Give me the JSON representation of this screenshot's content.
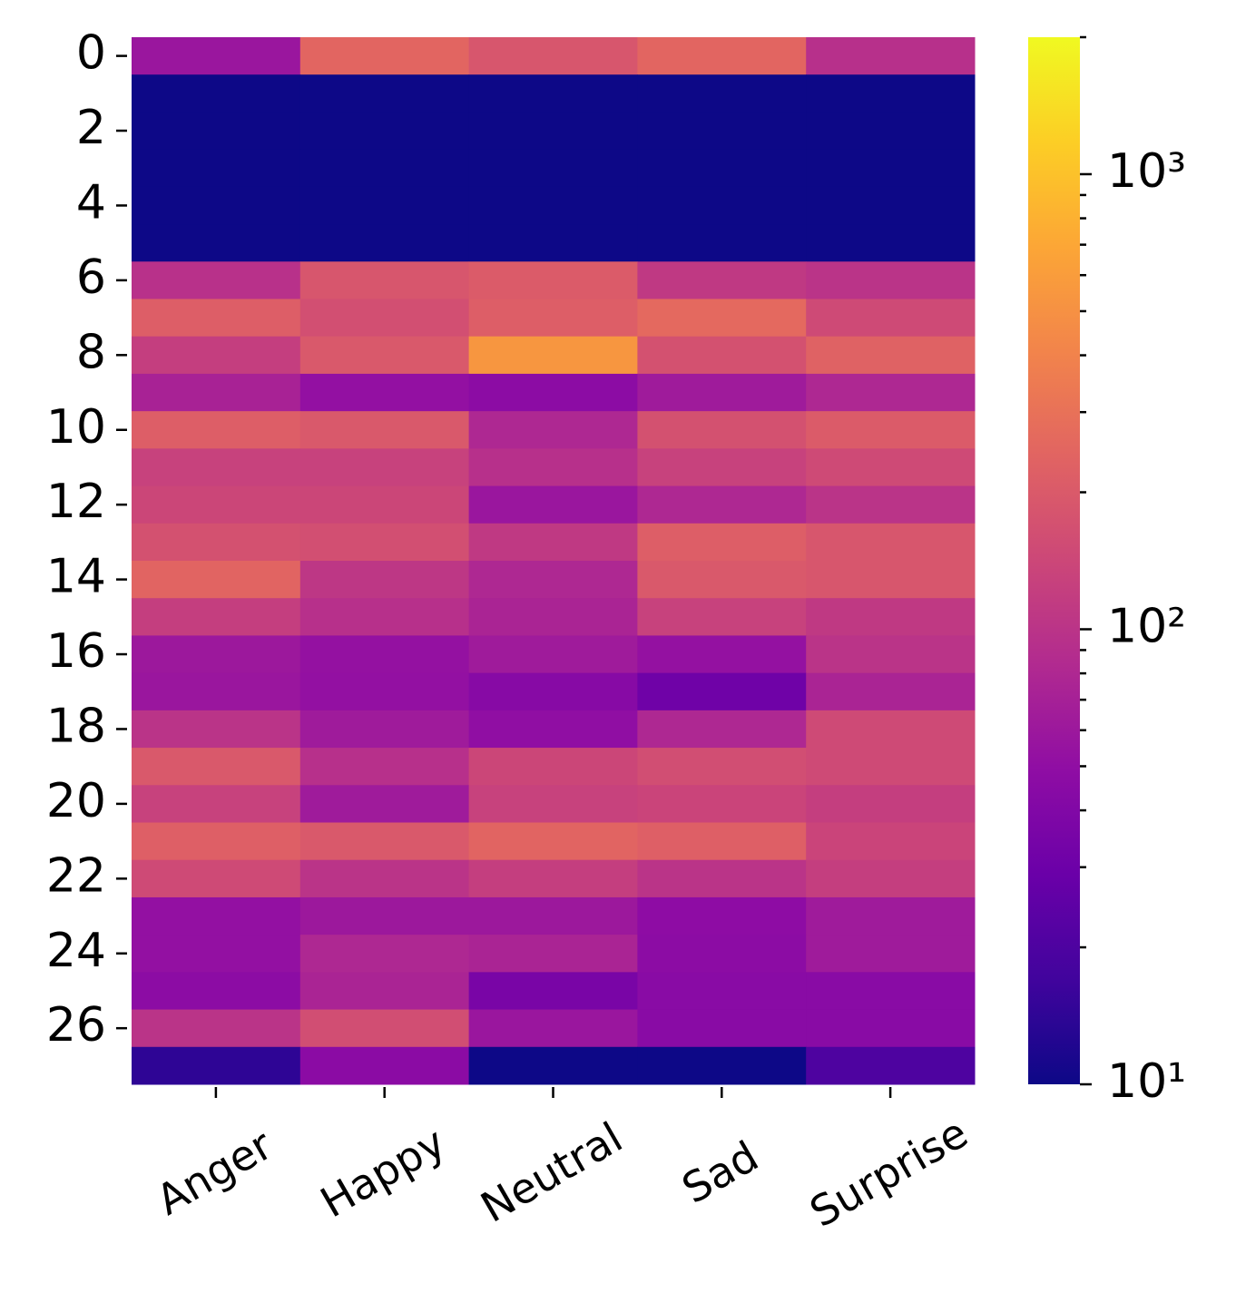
{
  "chart_data": {
    "type": "heatmap",
    "colormap": "plasma",
    "log_scale": true,
    "x_categories": [
      "Anger",
      "Happy",
      "Neutral",
      "Sad",
      "Surprise"
    ],
    "y_categories": [
      0,
      null,
      2,
      null,
      4,
      null,
      6,
      null,
      8,
      null,
      10,
      null,
      12,
      null,
      14,
      null,
      16,
      null,
      18,
      null,
      20,
      null,
      22,
      null,
      24,
      null,
      26,
      null
    ],
    "values": [
      [
        58,
        245,
        185,
        245,
        93
      ],
      [
        10,
        10,
        10,
        10,
        10
      ],
      [
        10,
        10,
        10,
        10,
        10
      ],
      [
        10,
        10,
        10,
        10,
        10
      ],
      [
        10,
        10,
        10,
        10,
        10
      ],
      [
        10,
        10,
        10,
        10,
        10
      ],
      [
        95,
        185,
        205,
        110,
        100
      ],
      [
        215,
        165,
        215,
        260,
        150
      ],
      [
        120,
        195,
        540,
        170,
        230
      ],
      [
        72,
        52,
        47,
        63,
        80
      ],
      [
        215,
        195,
        80,
        170,
        205
      ],
      [
        128,
        128,
        93,
        128,
        150
      ],
      [
        140,
        140,
        58,
        80,
        100
      ],
      [
        170,
        165,
        110,
        215,
        185
      ],
      [
        240,
        105,
        80,
        195,
        185
      ],
      [
        120,
        93,
        75,
        128,
        110
      ],
      [
        60,
        53,
        63,
        53,
        100
      ],
      [
        58,
        52,
        44,
        31,
        75
      ],
      [
        100,
        63,
        50,
        80,
        150
      ],
      [
        195,
        93,
        140,
        160,
        150
      ],
      [
        128,
        63,
        128,
        135,
        120
      ],
      [
        220,
        195,
        240,
        220,
        135
      ],
      [
        150,
        100,
        120,
        100,
        120
      ],
      [
        52,
        60,
        60,
        48,
        63
      ],
      [
        52,
        80,
        75,
        47,
        63
      ],
      [
        47,
        75,
        36,
        45,
        45
      ],
      [
        100,
        160,
        58,
        45,
        45
      ],
      [
        14,
        46,
        10,
        10,
        20
      ]
    ],
    "clim": [
      10,
      2000
    ],
    "colorbar_ticks": [
      {
        "value": 10,
        "label": "10¹"
      },
      {
        "value": 100,
        "label": "10²"
      },
      {
        "value": 1000,
        "label": "10³"
      }
    ],
    "colorbar_minor_ticks": [
      20,
      30,
      40,
      50,
      60,
      70,
      80,
      90,
      200,
      300,
      400,
      500,
      600,
      700,
      800,
      900,
      2000
    ]
  }
}
